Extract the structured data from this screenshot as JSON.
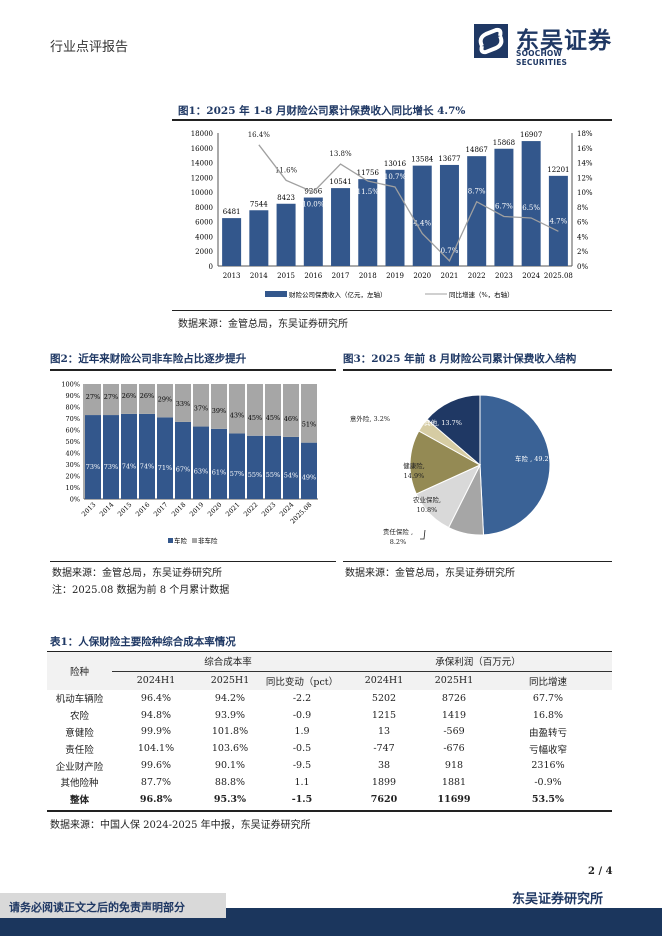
{
  "header": {
    "report_type": "行业点评报告",
    "logo_cn": "东吴证券",
    "logo_en": "SOOCHOW SECURITIES"
  },
  "colors": {
    "navy": "#1f3864",
    "bar": "#33578c",
    "grey": "#a6a6a6",
    "line": "#a0a0a0"
  },
  "fig1": {
    "title": "图1：2025 年 1-8 月财险公司累计保费收入同比增长 4.7%",
    "source": "数据来源：金管总局，东吴证券研究所"
  },
  "fig2": {
    "title": "图2：近年来财险公司非车险占比逐步提升",
    "source": "数据来源：金管总局，东吴证券研究所",
    "note": "注：2025.08 数据为前 8 个月累计数据"
  },
  "fig3": {
    "title": "图3：2025 年前 8 月财险公司累计保费收入结构",
    "source": "数据来源：金管总局，东吴证券研究所"
  },
  "chart_data": [
    {
      "type": "bar",
      "title": "图1",
      "categories": [
        "2013",
        "2014",
        "2015",
        "2016",
        "2017",
        "2018",
        "2019",
        "2020",
        "2021",
        "2022",
        "2023",
        "2024",
        "2025.08"
      ],
      "series": [
        {
          "name": "财险公司保费收入（亿元，左轴）",
          "type": "bar",
          "values": [
            6481,
            7544,
            8423,
            9266,
            10541,
            11756,
            13016,
            13584,
            13677,
            14867,
            15868,
            16907,
            12201
          ]
        },
        {
          "name": "同比增速（%，右轴）",
          "type": "line",
          "values": [
            null,
            16.4,
            11.6,
            10.0,
            13.8,
            11.5,
            10.7,
            4.4,
            0.7,
            8.7,
            6.7,
            6.5,
            4.7
          ]
        }
      ],
      "yticks": [
        "0",
        "2000",
        "4000",
        "6000",
        "8000",
        "10000",
        "12000",
        "14000",
        "16000",
        "18000"
      ],
      "ylim": [
        0,
        18000
      ],
      "y2ticks": [
        "0%",
        "2%",
        "4%",
        "6%",
        "8%",
        "10%",
        "12%",
        "14%",
        "16%",
        "18%"
      ],
      "y2lim": [
        0,
        18
      ],
      "legend": "bottom"
    },
    {
      "type": "bar",
      "stacked": true,
      "title": "图2",
      "categories": [
        "2013",
        "2014",
        "2015",
        "2016",
        "2017",
        "2018",
        "2019",
        "2020",
        "2021",
        "2022",
        "2023",
        "2024",
        "2025.08"
      ],
      "series": [
        {
          "name": "车险",
          "values": [
            73,
            73,
            74,
            74,
            71,
            67,
            63,
            61,
            57,
            55,
            55,
            54,
            49
          ]
        },
        {
          "name": "非车险",
          "values": [
            27,
            27,
            26,
            26,
            29,
            33,
            37,
            39,
            43,
            45,
            45,
            46,
            51
          ]
        }
      ],
      "yticks": [
        "0%",
        "10%",
        "20%",
        "30%",
        "40%",
        "50%",
        "60%",
        "70%",
        "80%",
        "90%",
        "100%"
      ],
      "ylim": [
        0,
        100
      ],
      "legend": "bottom"
    },
    {
      "type": "pie",
      "title": "图3",
      "slices": [
        {
          "label": "车险 , 49.2%",
          "value": 49.2,
          "color": "#3a6296"
        },
        {
          "label": "责任保险 , 8.2%",
          "value": 8.2,
          "color": "#a6a6a6"
        },
        {
          "label": "农业保险, 10.8%",
          "value": 10.8,
          "color": "#d9d9d9"
        },
        {
          "label": "健康险, 14.9%",
          "value": 14.9,
          "color": "#948a54"
        },
        {
          "label": "意外险, 3.2%",
          "value": 3.2,
          "color": "#d6cca3"
        },
        {
          "label": "其他, 13.7%",
          "value": 13.7,
          "color": "#1f3864"
        }
      ]
    }
  ],
  "table": {
    "title": "表1：人保财险主要险种综合成本率情况",
    "col0": "险种",
    "group1": "综合成本率",
    "group2": "承保利润（百万元）",
    "sub": [
      "2024H1",
      "2025H1",
      "同比变动（pct）",
      "2024H1",
      "2025H1",
      "同比增速"
    ],
    "rows": [
      [
        "机动车辆险",
        "96.4%",
        "94.2%",
        "-2.2",
        "5202",
        "8726",
        "67.7%"
      ],
      [
        "农险",
        "94.8%",
        "93.9%",
        "-0.9",
        "1215",
        "1419",
        "16.8%"
      ],
      [
        "意健险",
        "99.9%",
        "101.8%",
        "1.9",
        "13",
        "-569",
        "由盈转亏"
      ],
      [
        "责任险",
        "104.1%",
        "103.6%",
        "-0.5",
        "-747",
        "-676",
        "亏幅收窄"
      ],
      [
        "企业财产险",
        "99.6%",
        "90.1%",
        "-9.5",
        "38",
        "918",
        "2316%"
      ],
      [
        "其他险种",
        "87.7%",
        "88.8%",
        "1.1",
        "1899",
        "1881",
        "-0.9%"
      ],
      [
        "整体",
        "96.8%",
        "95.3%",
        "-1.5",
        "7620",
        "11699",
        "53.5%"
      ]
    ],
    "source": "数据来源：中国人保 2024-2025 年中报，东吴证券研究所"
  },
  "footer": {
    "page": "2 / 4",
    "brand": "东吴证券研究所",
    "disclaimer": "请务必阅读正文之后的免责声明部分"
  }
}
